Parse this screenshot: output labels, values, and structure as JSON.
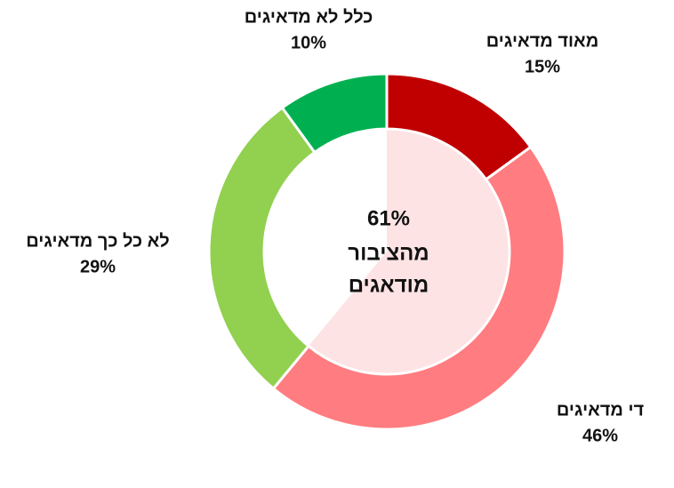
{
  "chart_data": {
    "type": "donut",
    "categories": [
      "מאוד מדאיגים",
      "די מדאיגים",
      "לא כל כך מדאיגים",
      "כלל לא מדאיגים"
    ],
    "values": [
      15,
      46,
      29,
      10
    ],
    "value_labels": [
      "15%",
      "46%",
      "29%",
      "10%"
    ],
    "colors": [
      "#c00000",
      "#ff7c80",
      "#92d050",
      "#00b050"
    ],
    "center": {
      "value": 61,
      "label": "61%",
      "text": [
        "מהציבור",
        "מודאגים"
      ],
      "color": "#fde3e4"
    }
  }
}
